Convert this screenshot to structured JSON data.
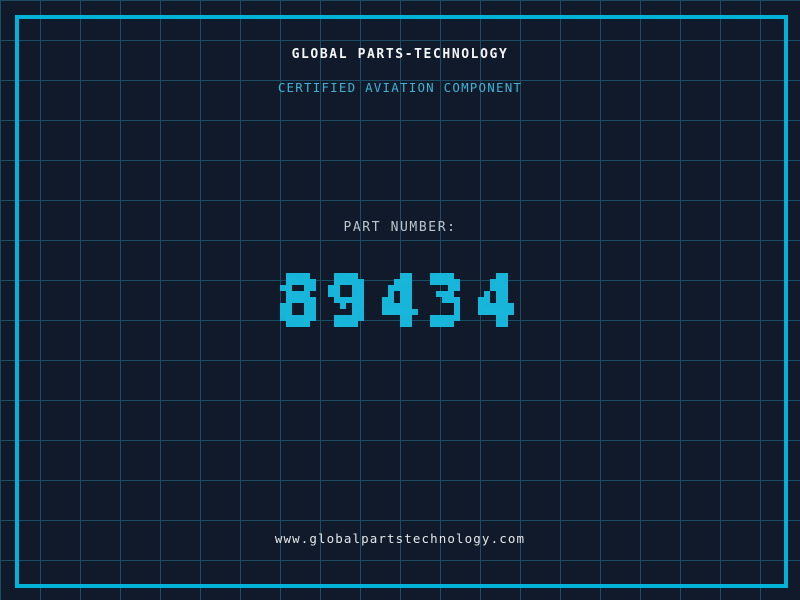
{
  "header": {
    "title": "GLOBAL PARTS-TECHNOLOGY",
    "subtitle": "CERTIFIED AVIATION COMPONENT"
  },
  "part": {
    "label": "PART NUMBER:",
    "number": "89434"
  },
  "footer": {
    "url": "www.globalpartstechnology.com"
  },
  "colors": {
    "background": "#101a2a",
    "grid_line": "#1b4e66",
    "frame": "#00b2d8",
    "title": "#f4f6f7",
    "subtitle": "#41b2d4",
    "label": "#bcc6cd",
    "part_number": "#17b6da",
    "url": "#e4e8ea"
  }
}
